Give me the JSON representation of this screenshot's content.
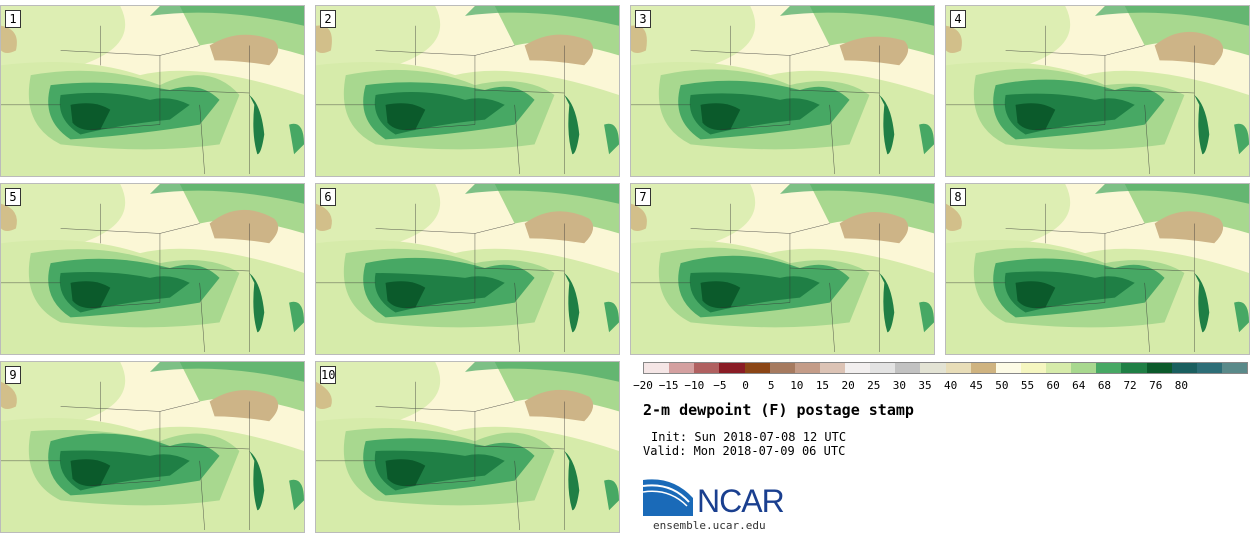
{
  "panels": [
    {
      "label": "1"
    },
    {
      "label": "2"
    },
    {
      "label": "3"
    },
    {
      "label": "4"
    },
    {
      "label": "5"
    },
    {
      "label": "6"
    },
    {
      "label": "7"
    },
    {
      "label": "8"
    },
    {
      "label": "9"
    },
    {
      "label": "10"
    }
  ],
  "colorbar": {
    "ticks": [
      "−20",
      "−15",
      "−10",
      "−5",
      "0",
      "5",
      "10",
      "15",
      "20",
      "25",
      "30",
      "35",
      "40",
      "45",
      "50",
      "55",
      "60",
      "64",
      "68",
      "72",
      "76",
      "80"
    ],
    "colors": [
      "#f5e6e6",
      "#d4a0a0",
      "#b06060",
      "#8a1c25",
      "#8b4515",
      "#a67a5f",
      "#c49c88",
      "#dcc3b5",
      "#f2efef",
      "#e3e3e3",
      "#c2c2c2",
      "#e3e3d4",
      "#e8ddb8",
      "#cfb380",
      "#fdfbe6",
      "#f5f6c0",
      "#d6ebaa",
      "#a8d88f",
      "#47a864",
      "#1f7f45",
      "#0b5a2b",
      "#1a5f5f",
      "#2d6e77",
      "#5a8a8a"
    ]
  },
  "title": "2-m dewpoint (F) postage stamp",
  "init": "Init: Sun 2018-07-08 12 UTC",
  "valid": "Valid: Mon 2018-07-09 06 UTC",
  "logo": {
    "name": "NCAR",
    "url": "ensemble.ucar.edu"
  },
  "map_colors": {
    "background": "#fbf7d6",
    "light_green": "#d6ebaa",
    "mid_green": "#a8d88f",
    "green": "#47a864",
    "dark_green": "#1f7f45",
    "darkest_green": "#0b5a2b",
    "tan": "#cfb380",
    "lake": "#cdb487"
  }
}
